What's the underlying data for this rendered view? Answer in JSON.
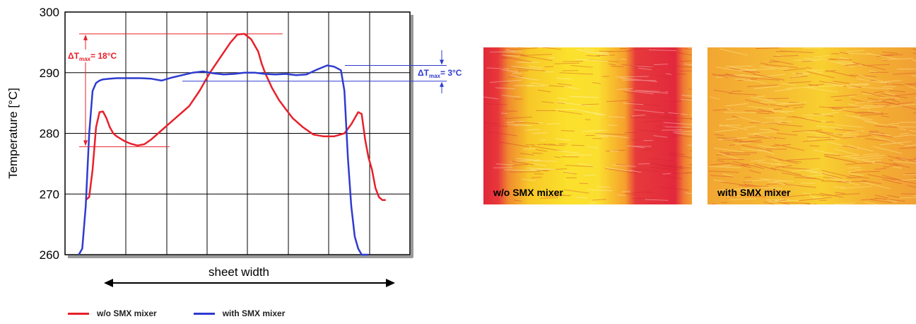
{
  "chart_data": {
    "type": "line",
    "ylabel": "Temperature [°C]",
    "xlabel": "sheet width",
    "ylim": [
      260,
      300
    ],
    "yticks": [
      260,
      270,
      280,
      290,
      300
    ],
    "grid": true,
    "legend_placement": "bottom-left",
    "series": [
      {
        "name": "w/o SMX mixer",
        "color": "#e8202a",
        "x": [
          0.06,
          0.07,
          0.08,
          0.09,
          0.1,
          0.11,
          0.12,
          0.13,
          0.14,
          0.15,
          0.17,
          0.19,
          0.21,
          0.23,
          0.25,
          0.27,
          0.3,
          0.33,
          0.36,
          0.39,
          0.42,
          0.45,
          0.48,
          0.5,
          0.52,
          0.54,
          0.55,
          0.56,
          0.57,
          0.58,
          0.6,
          0.62,
          0.64,
          0.66,
          0.69,
          0.72,
          0.75,
          0.78,
          0.81,
          0.83,
          0.85,
          0.86,
          0.87,
          0.88,
          0.89,
          0.9,
          0.91,
          0.92,
          0.93
        ],
        "y": [
          269,
          269.5,
          274,
          281,
          283.5,
          283.6,
          282.5,
          281,
          280,
          279.5,
          278.8,
          278.3,
          278,
          278.2,
          279,
          280,
          281.5,
          283,
          284.5,
          287,
          290,
          292.5,
          295,
          296.3,
          296.4,
          295.5,
          294.5,
          293.5,
          291.5,
          290,
          287.5,
          285.5,
          284,
          282.5,
          281,
          279.8,
          279.5,
          279.5,
          280,
          281.5,
          283.5,
          283.2,
          279,
          276,
          274,
          271,
          269.5,
          269,
          269
        ]
      },
      {
        "name": "with SMX mixer",
        "color": "#2f3bd0",
        "x": [
          0.04,
          0.05,
          0.06,
          0.07,
          0.08,
          0.09,
          0.1,
          0.11,
          0.13,
          0.15,
          0.18,
          0.22,
          0.25,
          0.28,
          0.31,
          0.34,
          0.37,
          0.4,
          0.43,
          0.46,
          0.49,
          0.52,
          0.55,
          0.58,
          0.61,
          0.64,
          0.67,
          0.7,
          0.73,
          0.76,
          0.78,
          0.8,
          0.81,
          0.82,
          0.83,
          0.84,
          0.85,
          0.86,
          0.87,
          0.88
        ],
        "y": [
          260,
          261,
          268,
          280,
          287,
          288.3,
          288.7,
          288.9,
          289,
          289.1,
          289.1,
          289.1,
          289,
          288.7,
          289.2,
          289.6,
          290,
          290.2,
          289.9,
          289.7,
          289.8,
          290,
          290,
          289.8,
          289.7,
          289.8,
          289.6,
          289.7,
          290.5,
          291.2,
          291,
          290.4,
          287,
          276,
          268,
          263,
          261,
          260,
          260,
          260
        ]
      }
    ],
    "annotations": [
      {
        "label": "ΔT",
        "sub": "max",
        "suffix": "= 18°C",
        "color": "#e8202a",
        "from": 277.8,
        "to": 296.4
      },
      {
        "label": "ΔT",
        "sub": "max",
        "suffix": "= 3°C",
        "color": "#2f3bd0",
        "from": 288.6,
        "to": 291.2
      }
    ]
  },
  "images": {
    "left_label": "w/o SMX mixer",
    "right_label": "with SMX mixer"
  },
  "legend": [
    {
      "label": "w/o SMX mixer",
      "color": "#e8202a"
    },
    {
      "label": "with SMX mixer",
      "color": "#2f3bd0"
    }
  ]
}
